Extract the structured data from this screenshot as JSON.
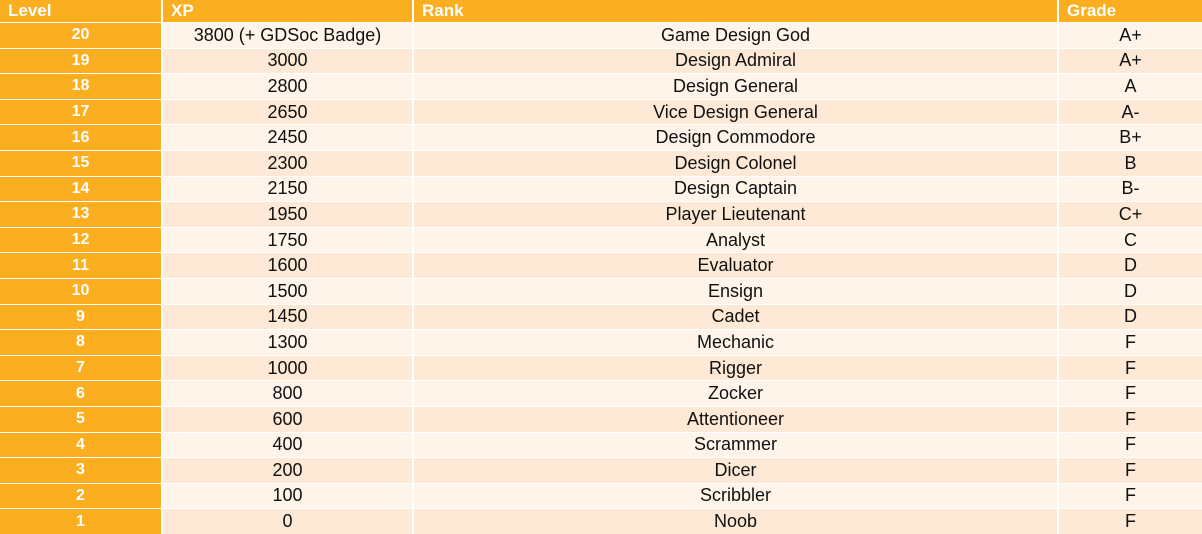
{
  "header": {
    "level": "Level",
    "xp": "XP",
    "rank": "Rank",
    "grade": "Grade"
  },
  "rows": [
    {
      "level": "20",
      "xp": "3800 (+ GDSoc Badge)",
      "rank": "Game Design God",
      "grade": "A+"
    },
    {
      "level": "19",
      "xp": "3000",
      "rank": "Design Admiral",
      "grade": "A+"
    },
    {
      "level": "18",
      "xp": "2800",
      "rank": "Design General",
      "grade": "A"
    },
    {
      "level": "17",
      "xp": "2650",
      "rank": "Vice Design General",
      "grade": "A-"
    },
    {
      "level": "16",
      "xp": "2450",
      "rank": "Design Commodore",
      "grade": "B+"
    },
    {
      "level": "15",
      "xp": "2300",
      "rank": "Design Colonel",
      "grade": "B"
    },
    {
      "level": "14",
      "xp": "2150",
      "rank": "Design Captain",
      "grade": "B-"
    },
    {
      "level": "13",
      "xp": "1950",
      "rank": "Player Lieutenant",
      "grade": "C+"
    },
    {
      "level": "12",
      "xp": "1750",
      "rank": "Analyst",
      "grade": "C"
    },
    {
      "level": "11",
      "xp": "1600",
      "rank": "Evaluator",
      "grade": "D"
    },
    {
      "level": "10",
      "xp": "1500",
      "rank": "Ensign",
      "grade": "D"
    },
    {
      "level": "9",
      "xp": "1450",
      "rank": "Cadet",
      "grade": "D"
    },
    {
      "level": "8",
      "xp": "1300",
      "rank": "Mechanic",
      "grade": "F"
    },
    {
      "level": "7",
      "xp": "1000",
      "rank": "Rigger",
      "grade": "F"
    },
    {
      "level": "6",
      "xp": "800",
      "rank": "Zocker",
      "grade": "F"
    },
    {
      "level": "5",
      "xp": "600",
      "rank": "Attentioneer",
      "grade": "F"
    },
    {
      "level": "4",
      "xp": "400",
      "rank": "Scrammer",
      "grade": "F"
    },
    {
      "level": "3",
      "xp": "200",
      "rank": "Dicer",
      "grade": "F"
    },
    {
      "level": "2",
      "xp": "100",
      "rank": "Scribbler",
      "grade": "F"
    },
    {
      "level": "1",
      "xp": "0",
      "rank": "Noob",
      "grade": "F"
    }
  ]
}
